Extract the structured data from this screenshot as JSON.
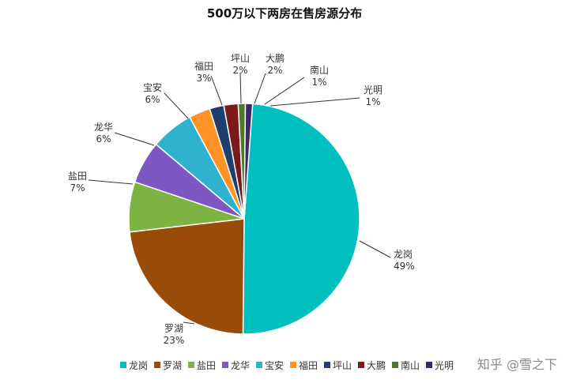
{
  "chart_data": {
    "type": "pie",
    "title": "500万以下两房在售房源分布",
    "slices": [
      {
        "label": "龙岗",
        "value": 49,
        "display": "49%",
        "color": "#00BFBF"
      },
      {
        "label": "罗湖",
        "value": 23,
        "display": "23%",
        "color": "#994C0A"
      },
      {
        "label": "盐田",
        "value": 7,
        "display": "7%",
        "color": "#7CB342"
      },
      {
        "label": "龙华",
        "value": 6,
        "display": "6%",
        "color": "#7E57C2"
      },
      {
        "label": "宝安",
        "value": 6,
        "display": "6%",
        "color": "#2EB2CF"
      },
      {
        "label": "福田",
        "value": 3,
        "display": "3%",
        "color": "#FF9326"
      },
      {
        "label": "坪山",
        "value": 2,
        "display": "2%",
        "color": "#1F3F6F"
      },
      {
        "label": "大鹏",
        "value": 2,
        "display": "2%",
        "color": "#7A1A1A"
      },
      {
        "label": "南山",
        "value": 1,
        "display": "1%",
        "color": "#4C7A2A"
      },
      {
        "label": "光明",
        "value": 1,
        "display": "1%",
        "color": "#3A2A6B"
      }
    ],
    "legend_position": "bottom"
  },
  "watermark": "知乎 @雪之下"
}
